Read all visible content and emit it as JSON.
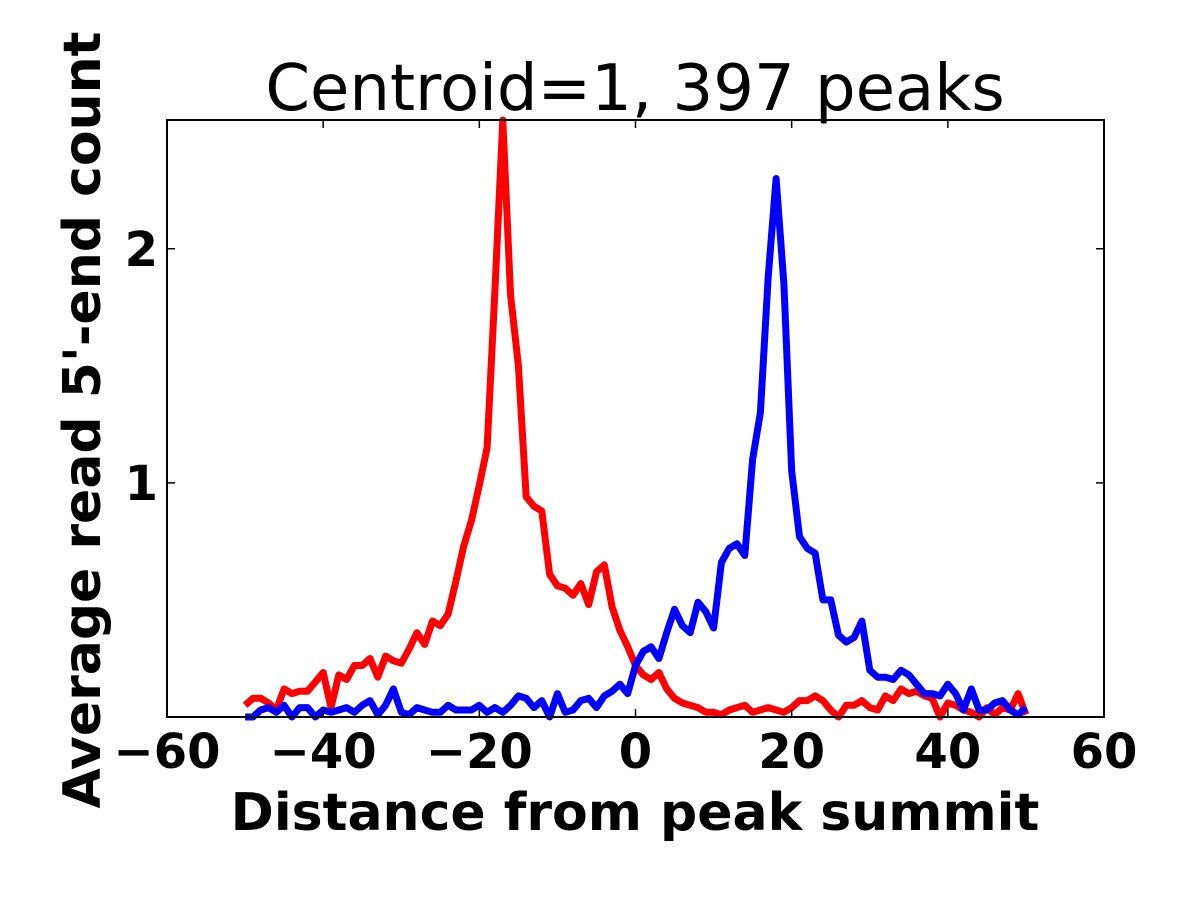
{
  "chart_data": {
    "type": "line",
    "title": "Centroid=1, 397 peaks",
    "xlabel": "Distance from peak summit",
    "ylabel": "Average read 5'-end count",
    "xlim": [
      -60,
      60
    ],
    "ylim": [
      0.0,
      2.55
    ],
    "xticks": [
      -60,
      -40,
      -20,
      0,
      20,
      40,
      60
    ],
    "xtick_labels": [
      "−60",
      "−40",
      "−20",
      "0",
      "20",
      "40",
      "60"
    ],
    "yticks": [
      1,
      2
    ],
    "ytick_labels": [
      "1",
      "2"
    ],
    "grid": false,
    "legend": "none",
    "x": [
      -50,
      -49,
      -48,
      -47,
      -46,
      -45,
      -44,
      -43,
      -42,
      -41,
      -40,
      -39,
      -38,
      -37,
      -36,
      -35,
      -34,
      -33,
      -32,
      -31,
      -30,
      -29,
      -28,
      -27,
      -26,
      -25,
      -24,
      -23,
      -22,
      -21,
      -20,
      -19,
      -18,
      -17,
      -16,
      -15,
      -14,
      -13,
      -12,
      -11,
      -10,
      -9,
      -8,
      -7,
      -6,
      -5,
      -4,
      -3,
      -2,
      -1,
      0,
      1,
      2,
      3,
      4,
      5,
      6,
      7,
      8,
      9,
      10,
      11,
      12,
      13,
      14,
      15,
      16,
      17,
      18,
      19,
      20,
      21,
      22,
      23,
      24,
      25,
      26,
      27,
      28,
      29,
      30,
      31,
      32,
      33,
      34,
      35,
      36,
      37,
      38,
      39,
      40,
      41,
      42,
      43,
      44,
      45,
      46,
      47,
      48,
      49,
      50
    ],
    "series": [
      {
        "color": "#ff0000",
        "values": [
          0.05,
          0.08,
          0.08,
          0.06,
          0.03,
          0.12,
          0.1,
          0.11,
          0.11,
          0.15,
          0.19,
          0.04,
          0.18,
          0.16,
          0.22,
          0.22,
          0.25,
          0.17,
          0.26,
          0.24,
          0.23,
          0.29,
          0.36,
          0.31,
          0.41,
          0.39,
          0.44,
          0.58,
          0.73,
          0.84,
          0.99,
          1.15,
          1.82,
          2.6,
          1.8,
          1.5,
          0.94,
          0.9,
          0.88,
          0.61,
          0.56,
          0.55,
          0.52,
          0.57,
          0.48,
          0.62,
          0.65,
          0.47,
          0.37,
          0.3,
          0.22,
          0.18,
          0.16,
          0.19,
          0.12,
          0.08,
          0.06,
          0.05,
          0.04,
          0.02,
          0.02,
          0.01,
          0.03,
          0.04,
          0.05,
          0.02,
          0.03,
          0.04,
          0.03,
          0.02,
          0.04,
          0.07,
          0.07,
          0.09,
          0.07,
          0.03,
          0.0,
          0.05,
          0.05,
          0.07,
          0.04,
          0.03,
          0.09,
          0.07,
          0.12,
          0.1,
          0.11,
          0.09,
          0.08,
          0.0,
          0.06,
          0.05,
          0.03,
          0.02,
          0.0,
          0.04,
          0.01,
          0.04,
          0.03,
          0.1,
          0.01
        ]
      },
      {
        "color": "#0000ff",
        "values": [
          0.0,
          0.0,
          0.03,
          0.04,
          0.02,
          0.05,
          0.0,
          0.04,
          0.04,
          0.0,
          0.03,
          0.02,
          0.03,
          0.04,
          0.02,
          0.05,
          0.07,
          0.01,
          0.05,
          0.12,
          0.02,
          0.01,
          0.04,
          0.03,
          0.02,
          0.02,
          0.05,
          0.03,
          0.03,
          0.03,
          0.05,
          0.02,
          0.04,
          0.02,
          0.05,
          0.09,
          0.08,
          0.04,
          0.07,
          0.0,
          0.1,
          0.02,
          0.03,
          0.07,
          0.08,
          0.04,
          0.09,
          0.11,
          0.14,
          0.1,
          0.22,
          0.28,
          0.3,
          0.25,
          0.36,
          0.46,
          0.39,
          0.36,
          0.49,
          0.45,
          0.38,
          0.66,
          0.72,
          0.74,
          0.69,
          1.1,
          1.3,
          1.88,
          2.3,
          1.85,
          1.05,
          0.77,
          0.72,
          0.7,
          0.5,
          0.5,
          0.35,
          0.32,
          0.34,
          0.41,
          0.2,
          0.17,
          0.17,
          0.16,
          0.2,
          0.18,
          0.14,
          0.1,
          0.1,
          0.09,
          0.14,
          0.1,
          0.03,
          0.12,
          0.03,
          0.03,
          0.06,
          0.07,
          0.03,
          0.01,
          0.04
        ]
      }
    ]
  }
}
